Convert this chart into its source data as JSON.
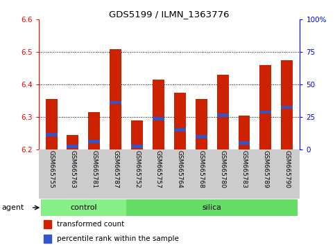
{
  "title": "GDS5199 / ILMN_1363776",
  "samples": [
    "GSM665755",
    "GSM665763",
    "GSM665781",
    "GSM665787",
    "GSM665752",
    "GSM665757",
    "GSM665764",
    "GSM665768",
    "GSM665780",
    "GSM665783",
    "GSM665789",
    "GSM665790"
  ],
  "groups": [
    "control",
    "control",
    "control",
    "control",
    "silica",
    "silica",
    "silica",
    "silica",
    "silica",
    "silica",
    "silica",
    "silica"
  ],
  "transformed_count": [
    6.355,
    6.245,
    6.315,
    6.51,
    6.29,
    6.415,
    6.375,
    6.355,
    6.43,
    6.305,
    6.46,
    6.475
  ],
  "percentile_rank": [
    6.245,
    6.21,
    6.225,
    6.345,
    6.21,
    6.295,
    6.26,
    6.24,
    6.305,
    6.22,
    6.315,
    6.33
  ],
  "ymin": 6.2,
  "ymax": 6.6,
  "ytick_vals": [
    6.2,
    6.3,
    6.4,
    6.5,
    6.6
  ],
  "ytick_labels_left": [
    "6.2",
    "6.3",
    "6.4",
    "6.5",
    "6.6"
  ],
  "ytick_labels_right": [
    "0",
    "25",
    "50",
    "75",
    "100%"
  ],
  "bar_color": "#cc2200",
  "blue_color": "#3355cc",
  "control_color": "#88ee88",
  "silica_color": "#66dd66",
  "bar_width": 0.55,
  "agent_label": "agent",
  "legend_tc": "transformed count",
  "legend_pr": "percentile rank within the sample",
  "bg_xlabels": "#cccccc",
  "n_control": 4,
  "n_silica": 8
}
